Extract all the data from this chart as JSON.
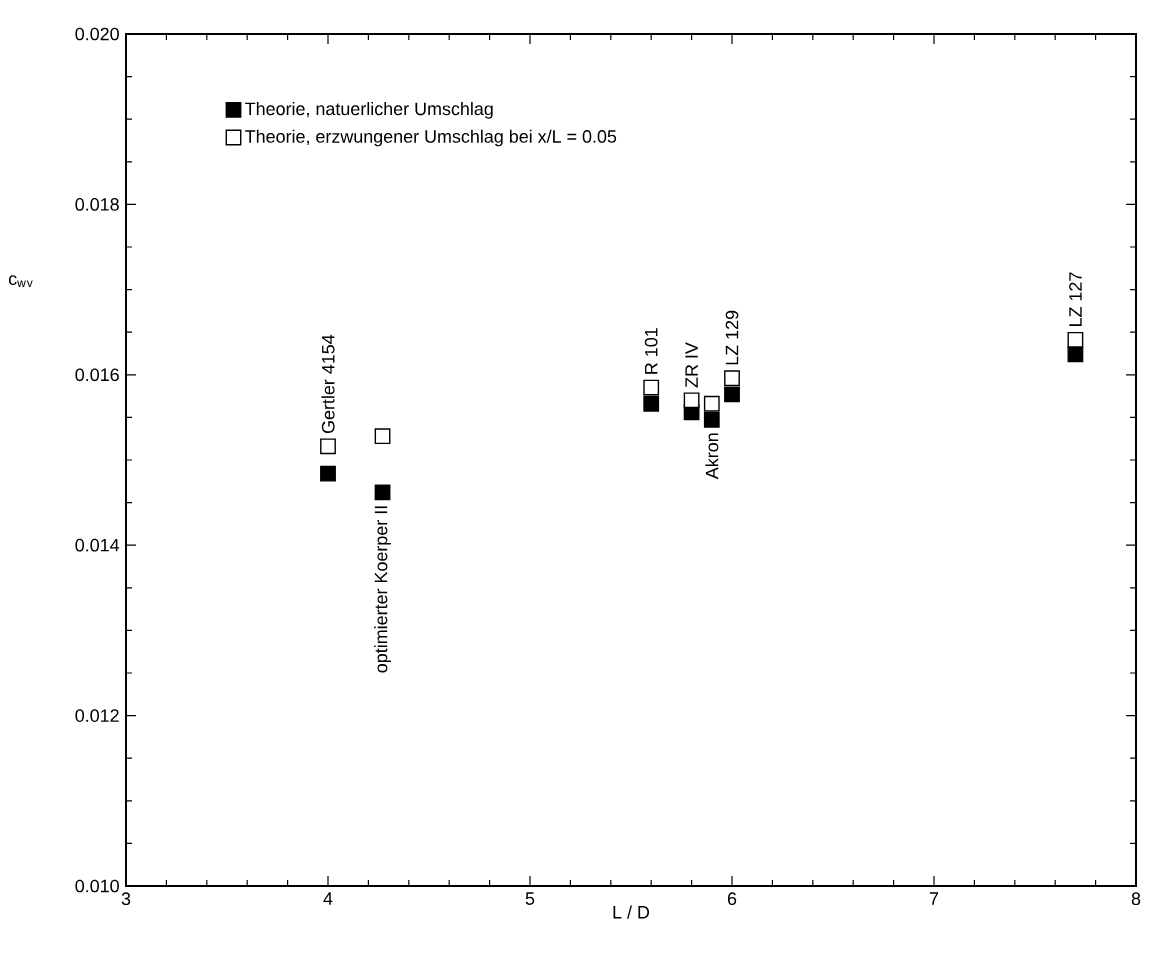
{
  "chart_data": {
    "type": "scatter",
    "xlabel": "L / D",
    "ylabel": "c$_{w}$$_{v}$",
    "x": [
      4.0,
      4.27,
      5.6,
      5.8,
      5.9,
      6.0,
      7.7
    ],
    "series": [
      {
        "name": "Theorie, natuerlicher Umschlag",
        "color": "#000000",
        "values": [
          0.01484,
          0.01462,
          0.01566,
          0.01556,
          0.01547,
          0.01577,
          0.01624
        ]
      },
      {
        "name": "Theorie, erzwungener Umschlag bei x/L = 0.05",
        "color": "#ffffff",
        "values": [
          0.01516,
          0.01528,
          0.01585,
          0.0157,
          0.01566,
          0.01596,
          0.01641
        ]
      }
    ],
    "annotations": [
      {
        "text": "Gertler 4154",
        "x": 4.0,
        "y": 0.01516
      },
      {
        "text": "optimierter Koerper II",
        "x": 4.27,
        "y": 0.01462
      },
      {
        "text": "R 101",
        "x": 5.6,
        "y": 0.01585
      },
      {
        "text": "ZR IV",
        "x": 5.8,
        "y": 0.0157
      },
      {
        "text": "Akron",
        "x": 5.9,
        "y": 0.01547
      },
      {
        "text": "LZ 129",
        "x": 6.0,
        "y": 0.01596
      },
      {
        "text": "LZ 127",
        "x": 7.7,
        "y": 0.01641
      }
    ],
    "xlim": [
      3,
      8
    ],
    "ylim": [
      0.01,
      0.02
    ],
    "xticks": [
      3,
      4,
      5,
      6,
      7,
      8
    ],
    "yticks": [
      {
        "value": 0.01,
        "label": "0.010"
      },
      {
        "value": 0.012,
        "label": "0.012"
      },
      {
        "value": 0.014,
        "label": "0.014"
      },
      {
        "value": 0.016,
        "label": "0.016"
      },
      {
        "value": 0.018,
        "label": "0.018"
      },
      {
        "value": 0.02,
        "label": "0.020"
      }
    ],
    "marker": "square",
    "legend": "top left",
    "grid": false
  }
}
